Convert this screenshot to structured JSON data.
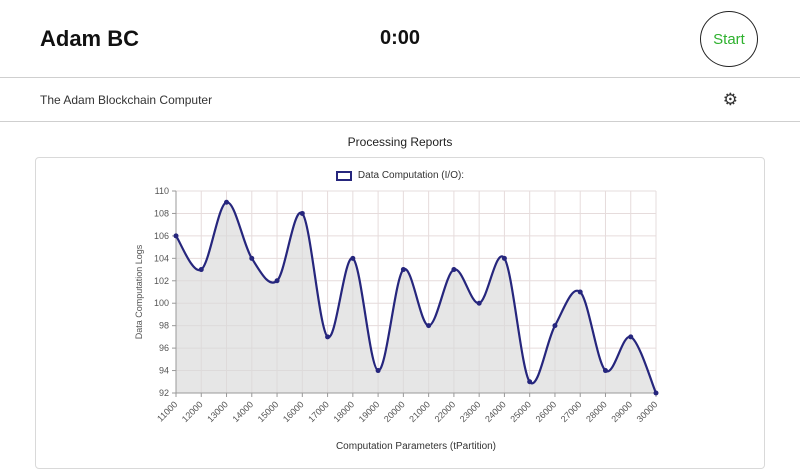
{
  "header": {
    "title": "Adam BC",
    "timer": "0:00",
    "start_label": "Start"
  },
  "toolbar": {
    "app_name": "The Adam Blockchain Computer",
    "gear_icon": "⚙"
  },
  "section": {
    "title": "Processing Reports"
  },
  "chart_data": {
    "type": "area",
    "legend": "Data Computation (I/O):",
    "xlabel": "Computation Parameters (tPartition)",
    "ylabel": "Data Computation Logs",
    "x": [
      11000,
      12000,
      13000,
      14000,
      15000,
      16000,
      17000,
      18000,
      19000,
      20000,
      21000,
      22000,
      23000,
      24000,
      25000,
      26000,
      27000,
      28000,
      29000,
      30000
    ],
    "values": [
      106,
      103,
      109,
      104,
      102,
      108,
      97,
      104,
      94,
      103,
      98,
      103,
      100,
      104,
      93,
      98,
      101,
      94,
      97,
      92
    ],
    "xlim": [
      11000,
      30000
    ],
    "ylim": [
      92,
      110
    ],
    "ytick_step": 2,
    "grid": true,
    "legend_position": "top",
    "colors": {
      "line": "#26267d",
      "fill": "#d8d8d8",
      "grid": "#e6dcdc",
      "axis": "#999999",
      "label": "#555555"
    }
  }
}
